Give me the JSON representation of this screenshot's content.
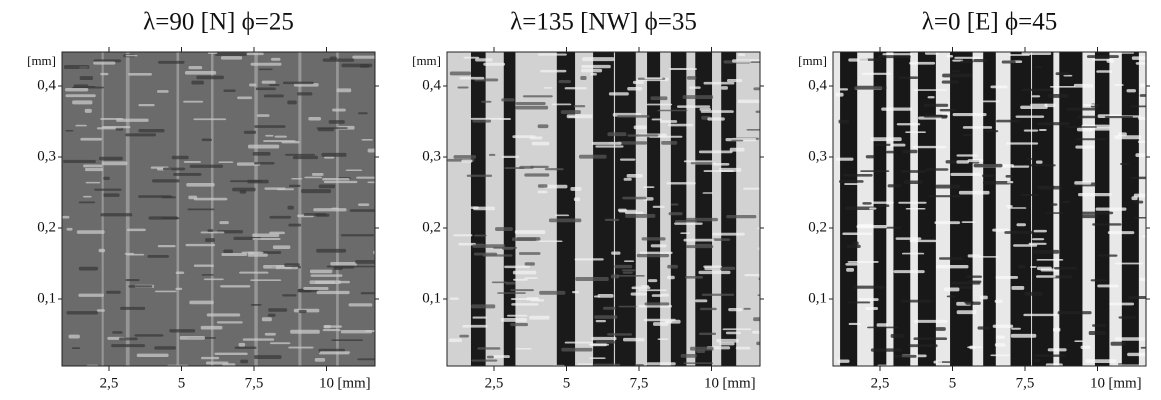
{
  "panels": [
    {
      "title": "λ=90 [N] ϕ=25",
      "y_unit": "[mm]",
      "x_unit": "[mm]",
      "yticks": [
        "0,4",
        "0,3",
        "0,2",
        "0,1"
      ],
      "xticks": [
        "2,5",
        "5",
        "7,5",
        "10"
      ]
    },
    {
      "title": "λ=135 [NW] ϕ=35",
      "y_unit": "[mm]",
      "x_unit": "[mm]",
      "yticks": [
        "0,4",
        "0,3",
        "0,2",
        "0,1"
      ],
      "xticks": [
        "2,5",
        "5",
        "7,5",
        "10"
      ]
    },
    {
      "title": "λ=0 [E] ϕ=45",
      "y_unit": "[mm]",
      "x_unit": "[mm]",
      "yticks": [
        "0,4",
        "0,3",
        "0,2",
        "0,1"
      ],
      "xticks": [
        "2,5",
        "5",
        "7,5",
        "10"
      ]
    }
  ]
}
